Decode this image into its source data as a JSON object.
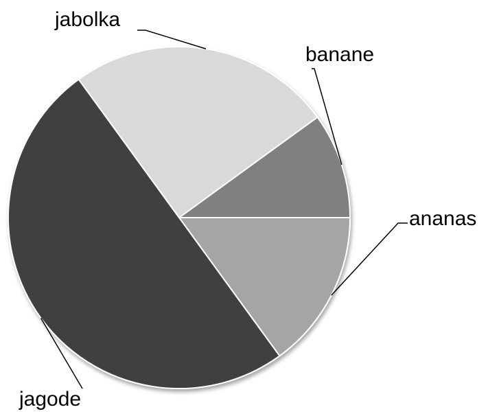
{
  "chart_data": {
    "type": "pie",
    "title": "",
    "legend": "none",
    "slices": [
      {
        "label": "banane",
        "value": 10,
        "color": "#808080"
      },
      {
        "label": "ananas",
        "value": 15,
        "color": "#a5a5a5"
      },
      {
        "label": "jagode",
        "value": 50,
        "color": "#404040"
      },
      {
        "label": "jabolka",
        "value": 25,
        "color": "#d9d9d9"
      }
    ]
  }
}
